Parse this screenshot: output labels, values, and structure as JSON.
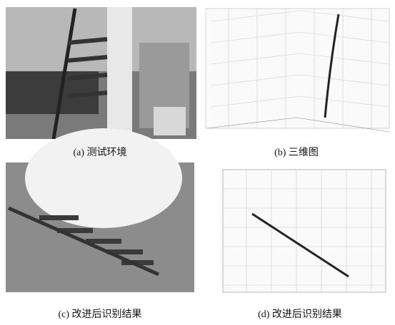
{
  "figure": {
    "panels": [
      {
        "caption": "(a) 测试环境"
      },
      {
        "caption": "(b) 三维图"
      },
      {
        "caption": "(c) 改进后识别结果"
      },
      {
        "caption": "(d) 改进后识别结果"
      }
    ]
  }
}
